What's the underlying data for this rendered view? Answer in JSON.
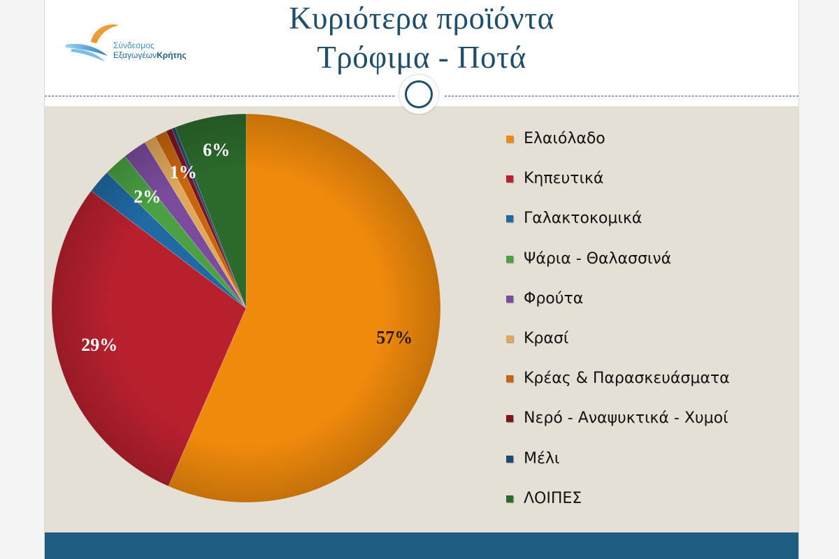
{
  "header": {
    "title_line1": "Κυριότερα προϊόντα",
    "title_line2": "Τρόφιμα - Ποτά",
    "logo_line1": "Σύνδεσμος",
    "logo_line2a": "Εξαγωγέων",
    "logo_line2b": "Κρήτης"
  },
  "chart_data": {
    "type": "pie",
    "title": "",
    "legend_position": "right",
    "slices": [
      {
        "name": "Ελαιόλαδο",
        "value": 57,
        "label": "57%",
        "color": "#f08a0c"
      },
      {
        "name": "Κηπευτικά",
        "value": 29,
        "label": "29%",
        "color": "#b8202e"
      },
      {
        "name": "Γαλακτοκομικά",
        "value": 2,
        "label": "",
        "color": "#1f6aa3"
      },
      {
        "name": "Ψάρια - Θαλασσινά",
        "value": 2,
        "label": "2%",
        "color": "#4aa043"
      },
      {
        "name": "Φρούτα",
        "value": 2,
        "label": "",
        "color": "#7b4c9e"
      },
      {
        "name": "Κρασί",
        "value": 1,
        "label": "",
        "color": "#e0a85a"
      },
      {
        "name": "Κρέας & Παρασκευάσματα",
        "value": 1,
        "label": "1%",
        "color": "#c8650c"
      },
      {
        "name": "Νερό - Αναψυκτικά - Χυμοί",
        "value": 0.5,
        "label": "",
        "color": "#7a1520"
      },
      {
        "name": "Μέλι",
        "value": 0.3,
        "label": "",
        "color": "#1f4a70"
      },
      {
        "name": "ΛΟΙΠΕΣ",
        "value": 6,
        "label": "6%",
        "color": "#2c6a2c"
      }
    ]
  },
  "colors": {
    "title": "#1f4e6b",
    "slide_background": "#e5e0d6",
    "footer_bar": "#1f5c82"
  }
}
